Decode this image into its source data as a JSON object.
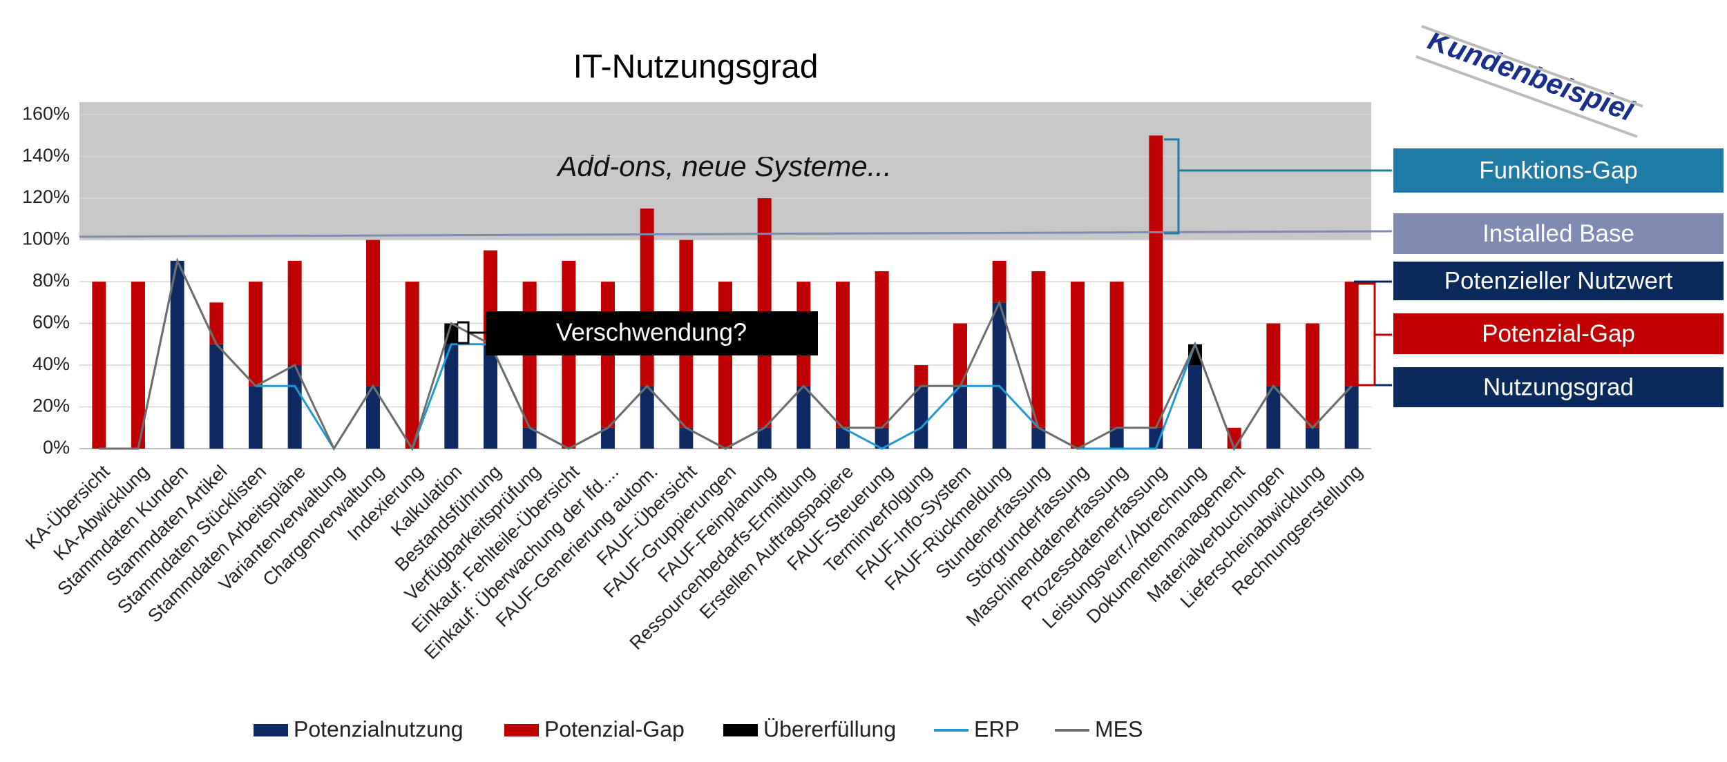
{
  "chart_data": {
    "type": "bar",
    "title": "IT-Nutzungsgrad",
    "categories": [
      "KA-Übersicht",
      "KA-Abwicklung",
      "Stammdaten Kunden",
      "Stammdaten Artikel",
      "Stammdaten Stücklisten",
      "Stammdaten Arbeitspläne",
      "Variantenverwaltung",
      "Chargenverwaltung",
      "Indexierung",
      "Kalkulation",
      "Bestandsführung",
      "Verfügbarkeitsprüfung",
      "Einkauf: Fehlteile-Übersicht",
      "Einkauf: Überwachung der lfd....",
      "FAUF-Generierung autom.",
      "FAUF-Übersicht",
      "FAUF-Gruppierungen",
      "FAUF-Feinplanung",
      "Ressourcenbedarfs-Ermittlung",
      "Erstellen Auftragspapiere",
      "FAUF-Steuerung",
      "Terminverfolgung",
      "FAUF-Info-System",
      "FAUF-Rückmeldung",
      "Stundenerfassung",
      "Störgrunderfassung",
      "Maschinendatenerfassung",
      "Prozessdatenerfassung",
      "Leistungsverr./Abrechnung",
      "Dokumentenmanagement",
      "Materialverbuchungen",
      "Lieferscheinabwicklung",
      "Rechnungserstellung"
    ],
    "series": [
      {
        "name": "Potenzialnutzung",
        "type": "bar",
        "color": "#0f2a63",
        "values": [
          0,
          0,
          90,
          50,
          30,
          40,
          0,
          30,
          0,
          50,
          50,
          10,
          0,
          10,
          30,
          10,
          0,
          10,
          30,
          10,
          10,
          30,
          30,
          70,
          10,
          0,
          10,
          10,
          40,
          0,
          30,
          10,
          30
        ]
      },
      {
        "name": "Potenzial-Gap",
        "type": "bar",
        "color": "#c00000",
        "values": [
          80,
          80,
          0,
          20,
          50,
          50,
          0,
          70,
          80,
          0,
          45,
          70,
          90,
          70,
          85,
          90,
          80,
          110,
          50,
          70,
          75,
          10,
          30,
          20,
          75,
          80,
          70,
          140,
          0,
          10,
          30,
          50,
          50
        ]
      },
      {
        "name": "Übererfüllung",
        "type": "bar",
        "color": "#000000",
        "values": [
          0,
          0,
          0,
          0,
          0,
          0,
          0,
          0,
          0,
          10,
          0,
          0,
          0,
          0,
          0,
          0,
          0,
          0,
          0,
          0,
          0,
          0,
          0,
          0,
          0,
          0,
          0,
          0,
          10,
          0,
          0,
          0,
          0
        ]
      },
      {
        "name": "ERP",
        "type": "line",
        "color": "#1f9ad6",
        "values": [
          0,
          0,
          90,
          50,
          30,
          30,
          0,
          30,
          0,
          50,
          50,
          10,
          0,
          10,
          30,
          10,
          0,
          10,
          30,
          10,
          0,
          10,
          30,
          30,
          10,
          0,
          0,
          0,
          50,
          0,
          30,
          10,
          30
        ]
      },
      {
        "name": "MES",
        "type": "line",
        "color": "#6d6d6d",
        "values": [
          0,
          0,
          90,
          50,
          30,
          40,
          0,
          30,
          0,
          60,
          50,
          10,
          0,
          10,
          30,
          10,
          0,
          10,
          30,
          10,
          10,
          30,
          30,
          70,
          10,
          0,
          10,
          10,
          50,
          0,
          30,
          10,
          30
        ]
      }
    ],
    "ylim": [
      0,
      166
    ],
    "yticks": [
      {
        "value": 0,
        "label": "0%"
      },
      {
        "value": 20,
        "label": "20%"
      },
      {
        "value": 40,
        "label": "40%"
      },
      {
        "value": 60,
        "label": "60%"
      },
      {
        "value": 80,
        "label": "80%"
      },
      {
        "value": 100,
        "label": "100%"
      },
      {
        "value": 120,
        "label": "120%"
      },
      {
        "value": 140,
        "label": "140%"
      },
      {
        "value": 160,
        "label": "160%"
      }
    ],
    "grid": true,
    "annotations": [
      "Add-ons, neue Systeme...",
      "Verschwendung?"
    ],
    "badge": "Kundenbeispiel",
    "callouts": [
      {
        "label": "Funktions-Gap",
        "color": "#1f7ba3"
      },
      {
        "label": "Installed Base",
        "color": "#7f8bb3"
      },
      {
        "label": "Potenzieller Nutzwert",
        "color": "#0b2a5c"
      },
      {
        "label": "Potenzial-Gap",
        "color": "#c00000"
      },
      {
        "label": "Nutzungsgrad",
        "color": "#0b2a5c"
      }
    ]
  }
}
